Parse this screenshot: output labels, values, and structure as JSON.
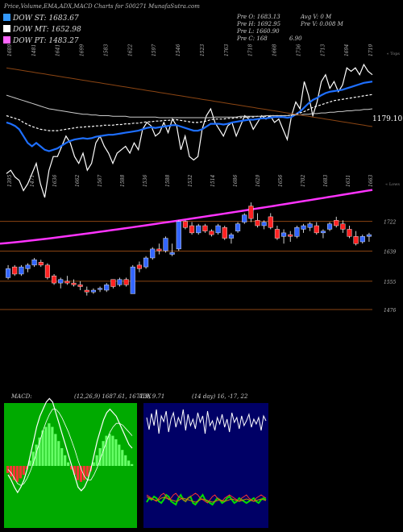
{
  "header": {
    "title": "Price,Volume,EMA,ADX,MACD Charts for 500271 MunafaSutra.com",
    "legend": [
      {
        "label": "DOW ST: 1683.67",
        "color": "#3399ff"
      },
      {
        "label": "DOW MT: 1652.98",
        "color": "#ffffff"
      },
      {
        "label": "DOW PT: 1483.27",
        "color": "#ff66ff"
      }
    ],
    "ohlc_left": [
      "Pre O: 1683.13",
      "Pre H: 1692.95",
      "Pre L: 1660.90",
      "Pre C: 168"
    ],
    "ohlc_right": [
      "Avg V: 0 M",
      "Pre V: 0.008 M"
    ],
    "extra_value": "6.90"
  },
  "colors": {
    "up_candle": "#3366ff",
    "down_candle": "#ff2222",
    "ema_short": "#1e6fff",
    "ema_long": "#8b4513",
    "ema_pt": "#ff33ff",
    "level_line": "#8b4513",
    "macd_bg": "#00aa00",
    "adx_bg": "#000066"
  },
  "chart_data": [
    {
      "type": "line",
      "name": "upper-price-line-chart",
      "top_label": "« Tops",
      "bottom_label": "« Lows",
      "right_value_label": "1179.10",
      "top_labels": [
        "1689",
        "1481",
        "1641",
        "1699",
        "1583",
        "1622",
        "1597",
        "1546",
        "1523",
        "1763",
        "1718",
        "1668",
        "1736",
        "1713",
        "1694",
        "1719"
      ],
      "bottom_labels": [
        "1395",
        "1471",
        "1636",
        "1662",
        "1567",
        "1588",
        "1536",
        "1588",
        "1532",
        "1514",
        "1686",
        "1629",
        "1656",
        "1702",
        "1683",
        "1631",
        "1663"
      ],
      "series": [
        {
          "values": [
            95,
            100,
            90,
            85,
            70,
            80,
            95,
            110,
            80,
            60,
            100,
            120,
            120,
            135,
            150,
            140,
            120,
            110,
            125,
            100,
            110,
            140,
            150,
            135,
            125,
            110,
            125,
            130,
            135,
            125,
            140,
            130,
            160,
            170,
            165,
            150,
            155,
            170,
            155,
            175,
            165,
            130,
            150,
            120,
            115,
            120,
            160,
            180,
            190,
            170,
            160,
            150,
            165,
            170,
            150,
            165,
            180,
            175,
            160,
            170,
            180,
            175,
            180,
            170,
            175,
            160,
            145,
            180,
            200,
            190,
            230,
            210,
            180,
            200,
            230,
            240,
            220,
            230,
            215,
            225,
            250,
            245,
            250,
            240,
            255,
            245,
            240
          ]
        },
        {
          "values": [
            170,
            168,
            165,
            160,
            150,
            140,
            135,
            140,
            135,
            130,
            128,
            130,
            132,
            136,
            140,
            143,
            145,
            146,
            147,
            146,
            147,
            149,
            150,
            151,
            152,
            152,
            153,
            154,
            155,
            156,
            157,
            158,
            160,
            162,
            163,
            162,
            163,
            164,
            165,
            166,
            166,
            164,
            162,
            160,
            158,
            158,
            160,
            164,
            168,
            168,
            168,
            167,
            168,
            170,
            171,
            172,
            173,
            174,
            174,
            175,
            176,
            176,
            177,
            178,
            178,
            178,
            177,
            178,
            182,
            186,
            192,
            198,
            203,
            206,
            210,
            213,
            215,
            216,
            217,
            218,
            220,
            222,
            224,
            226,
            228,
            229,
            230
          ]
        },
        {
          "values": [
            180,
            178,
            176,
            174,
            170,
            167,
            164,
            162,
            160,
            159,
            158,
            158,
            158,
            159,
            160,
            161,
            162,
            163,
            163,
            164,
            164,
            165,
            165,
            166,
            166,
            166,
            167,
            167,
            168,
            168,
            169,
            169,
            170,
            171,
            171,
            172,
            172,
            173,
            173,
            174,
            174,
            173,
            172,
            171,
            170,
            170,
            171,
            172,
            174,
            175,
            175,
            175,
            176,
            176,
            177,
            177,
            178,
            178,
            178,
            179,
            179,
            179,
            180,
            180,
            180,
            180,
            180,
            181,
            182,
            184,
            186,
            189,
            192,
            194,
            196,
            198,
            200,
            202,
            203,
            204,
            205,
            206,
            207,
            208,
            209,
            210,
            211
          ]
        },
        {
          "values": [
            210,
            208,
            206,
            204,
            202,
            200,
            198,
            196,
            194,
            192,
            190,
            189,
            188,
            187,
            186,
            185,
            184,
            183,
            182,
            182,
            181,
            181,
            180,
            180,
            180,
            179,
            179,
            179,
            179,
            178,
            178,
            178,
            178,
            178,
            178,
            178,
            177,
            177,
            177,
            177,
            177,
            177,
            177,
            177,
            177,
            177,
            177,
            177,
            177,
            178,
            178,
            178,
            178,
            178,
            178,
            179,
            179,
            179,
            179,
            179,
            179,
            180,
            180,
            180,
            180,
            180,
            180,
            181,
            181,
            181,
            182,
            182,
            183,
            183,
            184,
            184,
            185,
            185,
            186,
            186,
            187,
            187,
            188,
            188,
            189,
            189,
            190
          ]
        },
        {
          "values": [
            250,
            249,
            248,
            247,
            246,
            245,
            244,
            243,
            242,
            241,
            240,
            239,
            238,
            237,
            236,
            235,
            234,
            233,
            232,
            231,
            230,
            229,
            228,
            227,
            226,
            225,
            224,
            223,
            222,
            221,
            220,
            219,
            218,
            217,
            216,
            215,
            214,
            213,
            212,
            211,
            210,
            209,
            208,
            207,
            206,
            205,
            204,
            203,
            202,
            201,
            200,
            199,
            198,
            197,
            196,
            195,
            194,
            193,
            192,
            191,
            190,
            189,
            188,
            187,
            186,
            185,
            184,
            183,
            182,
            181,
            180,
            179,
            178,
            177,
            176,
            175,
            174,
            173,
            172,
            171,
            170,
            169,
            168,
            167,
            166,
            165,
            164
          ]
        }
      ]
    },
    {
      "type": "candlestick",
      "name": "lower-candle-chart",
      "levels": [
        {
          "value": 1722,
          "label": "1722"
        },
        {
          "value": 1639,
          "label": "1639"
        },
        {
          "value": 1555,
          "label": "1555"
        },
        {
          "value": 1476,
          "label": "1476"
        }
      ],
      "ylim": [
        1440,
        1800
      ],
      "candles": [
        [
          1565,
          1600,
          1560,
          1590
        ],
        [
          1595,
          1600,
          1570,
          1575
        ],
        [
          1575,
          1600,
          1570,
          1595
        ],
        [
          1590,
          1605,
          1580,
          1600
        ],
        [
          1600,
          1620,
          1595,
          1615
        ],
        [
          1608,
          1615,
          1595,
          1600
        ],
        [
          1600,
          1605,
          1560,
          1565
        ],
        [
          1570,
          1575,
          1545,
          1550
        ],
        [
          1550,
          1565,
          1535,
          1560
        ],
        [
          1555,
          1570,
          1545,
          1550
        ],
        [
          1550,
          1560,
          1540,
          1545
        ],
        [
          1545,
          1555,
          1530,
          1540
        ],
        [
          1530,
          1540,
          1515,
          1525
        ],
        [
          1525,
          1535,
          1520,
          1530
        ],
        [
          1532,
          1540,
          1525,
          1535
        ],
        [
          1530,
          1550,
          1525,
          1545
        ],
        [
          1560,
          1560,
          1535,
          1540
        ],
        [
          1545,
          1565,
          1540,
          1560
        ],
        [
          1560,
          1565,
          1540,
          1545
        ],
        [
          1520,
          1600,
          1520,
          1595
        ],
        [
          1600,
          1610,
          1580,
          1590
        ],
        [
          1595,
          1625,
          1590,
          1620
        ],
        [
          1620,
          1650,
          1615,
          1645
        ],
        [
          1645,
          1660,
          1630,
          1640
        ],
        [
          1640,
          1680,
          1635,
          1675
        ],
        [
          1630,
          1660,
          1625,
          1635
        ],
        [
          1645,
          1725,
          1640,
          1722
        ],
        [
          1722,
          1725,
          1700,
          1705
        ],
        [
          1710,
          1720,
          1685,
          1690
        ],
        [
          1690,
          1715,
          1685,
          1710
        ],
        [
          1710,
          1715,
          1690,
          1695
        ],
        [
          1695,
          1700,
          1680,
          1685
        ],
        [
          1690,
          1715,
          1685,
          1710
        ],
        [
          1705,
          1710,
          1670,
          1675
        ],
        [
          1675,
          1690,
          1660,
          1685
        ],
        [
          1695,
          1720,
          1690,
          1715
        ],
        [
          1720,
          1745,
          1715,
          1740
        ],
        [
          1765,
          1775,
          1720,
          1730
        ],
        [
          1725,
          1745,
          1705,
          1710
        ],
        [
          1710,
          1725,
          1700,
          1720
        ],
        [
          1735,
          1745,
          1700,
          1705
        ],
        [
          1700,
          1710,
          1670,
          1675
        ],
        [
          1680,
          1700,
          1660,
          1690
        ],
        [
          1685,
          1695,
          1665,
          1680
        ],
        [
          1680,
          1710,
          1675,
          1705
        ],
        [
          1700,
          1715,
          1690,
          1710
        ],
        [
          1705,
          1720,
          1695,
          1715
        ],
        [
          1710,
          1720,
          1685,
          1690
        ],
        [
          1690,
          1700,
          1675,
          1695
        ],
        [
          1700,
          1720,
          1695,
          1715
        ],
        [
          1725,
          1735,
          1705,
          1710
        ],
        [
          1715,
          1725,
          1690,
          1700
        ],
        [
          1700,
          1710,
          1675,
          1680
        ],
        [
          1680,
          1695,
          1655,
          1660
        ],
        [
          1665,
          1685,
          1660,
          1680
        ],
        [
          1680,
          1690,
          1665,
          1685
        ]
      ]
    },
    {
      "type": "area",
      "name": "macd-chart",
      "title": "MACD:",
      "params": "(12,26,9) 1687.61, 1677.9, 9.71",
      "histogram": [
        -4,
        -6,
        -8,
        -9,
        -7,
        -5,
        -2,
        3,
        8,
        12,
        16,
        20,
        22,
        24,
        22,
        18,
        14,
        10,
        6,
        2,
        -2,
        -5,
        -8,
        -9,
        -8,
        -6,
        -3,
        2,
        6,
        10,
        14,
        17,
        18,
        17,
        15,
        12,
        9,
        6,
        3,
        1
      ],
      "macd_line": [
        -5,
        -8,
        -12,
        -15,
        -12,
        -8,
        -2,
        6,
        14,
        22,
        28,
        32,
        36,
        38,
        36,
        30,
        24,
        18,
        12,
        6,
        0,
        -6,
        -12,
        -14,
        -12,
        -8,
        -2,
        6,
        14,
        20,
        26,
        30,
        32,
        30,
        28,
        24,
        20,
        16,
        12,
        10
      ],
      "signal_line": [
        -2,
        -4,
        -7,
        -10,
        -11,
        -10,
        -7,
        -3,
        2,
        8,
        14,
        20,
        25,
        29,
        32,
        32,
        30,
        27,
        23,
        19,
        14,
        9,
        3,
        -2,
        -6,
        -8,
        -8,
        -5,
        -1,
        4,
        9,
        14,
        19,
        22,
        24,
        24,
        23,
        21,
        19,
        17
      ]
    },
    {
      "type": "line",
      "name": "adx-chart",
      "title": "ADX",
      "params": "(14 day) 16, -17, 22",
      "series": [
        {
          "color": "#ffffff",
          "values": [
            60,
            45,
            65,
            50,
            70,
            40,
            62,
            55,
            68,
            42,
            58,
            66,
            48,
            60,
            52,
            70,
            44,
            64,
            50,
            58,
            46,
            66,
            54,
            62,
            40,
            68,
            50,
            56,
            44,
            60,
            52,
            64,
            48,
            58,
            42,
            66,
            54,
            60,
            46,
            62,
            50,
            56,
            64,
            48,
            58,
            52,
            60,
            44,
            62,
            56
          ]
        },
        {
          "color": "#00dd00",
          "values": [
            -45,
            -40,
            -42,
            -38,
            -40,
            -44,
            -46,
            -42,
            -36,
            -38,
            -44,
            -46,
            -48,
            -40,
            -36,
            -42,
            -44,
            -40,
            -38,
            -46,
            -48,
            -44,
            -40,
            -36,
            -42,
            -44,
            -46,
            -48,
            -44,
            -40,
            -42,
            -46,
            -44,
            -40,
            -38,
            -42,
            -46,
            -44,
            -40,
            -42,
            -44,
            -46,
            -44,
            -42,
            -40,
            -44,
            -46,
            -42,
            -40,
            -42
          ]
        },
        {
          "color": "#ff3333",
          "values": [
            -36,
            -38,
            -40,
            -42,
            -44,
            -40,
            -36,
            -34,
            -38,
            -42,
            -40,
            -36,
            -34,
            -38,
            -40,
            -42,
            -44,
            -40,
            -38,
            -36,
            -34,
            -36,
            -40,
            -42,
            -44,
            -46,
            -42,
            -38,
            -36,
            -40,
            -42,
            -44,
            -40,
            -38,
            -36,
            -38,
            -40,
            -42,
            -44,
            -40,
            -38,
            -36,
            -40,
            -42,
            -44,
            -40,
            -38,
            -36,
            -38,
            -40
          ]
        },
        {
          "color": "#cc8800",
          "values": [
            -38,
            -40,
            -41,
            -42,
            -43,
            -42,
            -40,
            -39,
            -40,
            -41,
            -42,
            -43,
            -44,
            -43,
            -41,
            -40,
            -41,
            -42,
            -43,
            -44,
            -45,
            -44,
            -42,
            -41,
            -42,
            -43,
            -44,
            -45,
            -44,
            -43,
            -42,
            -43,
            -44,
            -43,
            -42,
            -41,
            -42,
            -43,
            -44,
            -43,
            -42,
            -41,
            -42,
            -43,
            -44,
            -43,
            -42,
            -41,
            -42,
            -43
          ]
        }
      ]
    }
  ]
}
